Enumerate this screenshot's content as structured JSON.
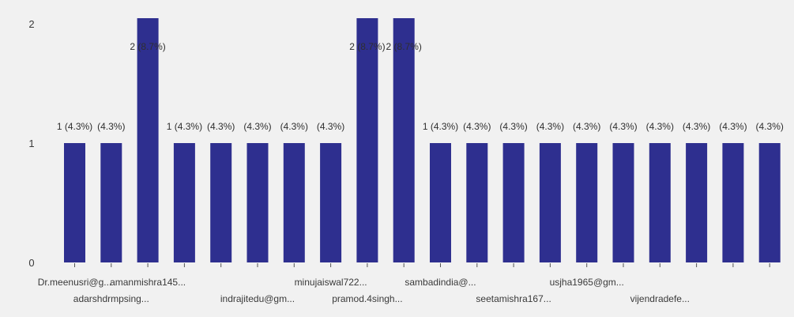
{
  "chart_data": {
    "type": "bar",
    "title": "",
    "xlabel": "",
    "ylabel": "",
    "ylim": [
      0,
      2
    ],
    "y_ticks": [
      0,
      1,
      2
    ],
    "grid": false,
    "bar_color": "#2e2f8f",
    "background_color": "#f1f1f1",
    "tick_label_color": "#3a3a3a",
    "data_label_color": "#2f2f2f",
    "categories": [
      "Dr.meenusri@g...",
      "adarshdrmpsing...",
      "amanmishra145...",
      "",
      "",
      "indrajitedu@gm...",
      "",
      "minujaiswal722...",
      "pramod.4singh...",
      "",
      "sambadindia@...",
      "",
      "seetamishra167...",
      "",
      "usjha1965@gm...",
      "",
      "vijendradefe...",
      "",
      "",
      ""
    ],
    "values": [
      1,
      1,
      2,
      1,
      1,
      1,
      1,
      1,
      2,
      2,
      1,
      1,
      1,
      1,
      1,
      1,
      1,
      1,
      1,
      1
    ],
    "data_labels": [
      "1 (4.3%)",
      "(4.3%)",
      "2 (8.7%)",
      "1 (4.3%)",
      "(4.3%)",
      "(4.3%)",
      "(4.3%)",
      "(4.3%)",
      "2 (8.7%)",
      "2 (8.7%)",
      "1 (4.3%)",
      "(4.3%)",
      "(4.3%)",
      "(4.3%)",
      "(4.3%)",
      "(4.3%)",
      "(4.3%)",
      "(4.3%)",
      "(4.3%)",
      "(4.3%)"
    ]
  }
}
